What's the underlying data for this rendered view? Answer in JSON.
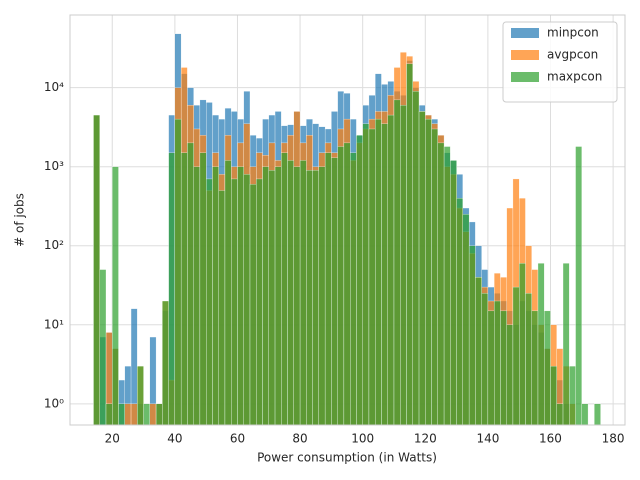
{
  "chart_data": {
    "type": "histogram",
    "xlabel": "Power consumption (in Watts)",
    "ylabel": "# of jobs",
    "bins": [
      14,
      16,
      18,
      20,
      22,
      24,
      26,
      28,
      30,
      32,
      34,
      36,
      38,
      40,
      42,
      44,
      46,
      48,
      50,
      52,
      54,
      56,
      58,
      60,
      62,
      64,
      66,
      68,
      70,
      72,
      74,
      76,
      78,
      80,
      82,
      84,
      86,
      88,
      90,
      92,
      94,
      96,
      98,
      100,
      102,
      104,
      106,
      108,
      110,
      112,
      114,
      116,
      118,
      120,
      122,
      124,
      126,
      128,
      130,
      132,
      134,
      136,
      138,
      140,
      142,
      144,
      146,
      148,
      150,
      152,
      154,
      156,
      158,
      160,
      162,
      164,
      166,
      168,
      170,
      172,
      174,
      176
    ],
    "series": [
      {
        "name": "minpcon",
        "color": "#1f77b4",
        "values": [
          4500,
          7,
          8,
          5,
          2,
          3,
          16,
          1,
          0,
          7,
          1,
          15,
          4500,
          48000,
          15000,
          10000,
          6000,
          7000,
          6500,
          4500,
          4000,
          5500,
          5000,
          4000,
          9000,
          2500,
          2300,
          4000,
          4500,
          5000,
          3300,
          3400,
          5000,
          3300,
          4000,
          3500,
          3200,
          3000,
          5000,
          9000,
          8500,
          4000,
          2500,
          6000,
          8000,
          15000,
          11000,
          12000,
          9000,
          8000,
          22000,
          10000,
          6000,
          4500,
          4000,
          2500,
          1500,
          1200,
          800,
          300,
          200,
          100,
          50,
          30,
          25,
          20,
          15,
          10,
          20,
          15,
          10,
          8,
          5,
          3,
          2,
          1,
          0,
          0,
          0,
          0,
          0
        ]
      },
      {
        "name": "avgpcon",
        "color": "#ff7f0e",
        "values": [
          4500,
          0,
          8,
          5,
          0,
          1,
          1,
          3,
          0,
          1,
          1,
          20,
          2,
          10000,
          18000,
          6000,
          3000,
          2500,
          500,
          1500,
          800,
          2500,
          1000,
          2000,
          3500,
          1000,
          1500,
          1400,
          2000,
          1200,
          2000,
          2500,
          5000,
          2000,
          2500,
          1000,
          1500,
          2000,
          1500,
          3000,
          4000,
          1200,
          2000,
          3000,
          4000,
          5000,
          5000,
          8000,
          18000,
          28000,
          25000,
          12000,
          5000,
          4500,
          3500,
          2500,
          1000,
          800,
          300,
          150,
          80,
          40,
          30,
          20,
          45,
          40,
          300,
          700,
          400,
          100,
          50,
          10,
          5,
          10,
          5,
          3,
          1,
          0,
          0,
          0,
          0
        ]
      },
      {
        "name": "maxpcon",
        "color": "#2ca02c",
        "values": [
          4500,
          50,
          1,
          1000,
          1,
          0,
          0,
          3,
          1,
          0,
          1,
          20,
          1500,
          4000,
          1500,
          2000,
          1000,
          1500,
          700,
          1000,
          500,
          1200,
          700,
          1000,
          800,
          600,
          700,
          1000,
          900,
          1000,
          1500,
          1200,
          1000,
          1200,
          900,
          900,
          1000,
          1500,
          1300,
          1800,
          2000,
          1500,
          2500,
          3500,
          3000,
          4000,
          3500,
          4500,
          7000,
          6000,
          20000,
          9000,
          5000,
          4000,
          3000,
          2000,
          1800,
          1200,
          400,
          250,
          100,
          40,
          25,
          15,
          20,
          15,
          10,
          30,
          60,
          25,
          15,
          60,
          15,
          3,
          1,
          60,
          3,
          1800,
          1,
          0,
          1
        ]
      }
    ],
    "xlim": [
      6.5,
      183.8
    ],
    "xticks": [
      20,
      40,
      60,
      80,
      100,
      120,
      140,
      160,
      180
    ],
    "ylim": [
      0.54,
      83000
    ],
    "yscale": "log",
    "yticks": [
      {
        "value": 1,
        "label": "10⁰"
      },
      {
        "value": 10,
        "label": "10¹"
      },
      {
        "value": 100,
        "label": "10²"
      },
      {
        "value": 1000,
        "label": "10³"
      },
      {
        "value": 10000,
        "label": "10⁴"
      }
    ],
    "grid": true,
    "legend": "upper right"
  }
}
